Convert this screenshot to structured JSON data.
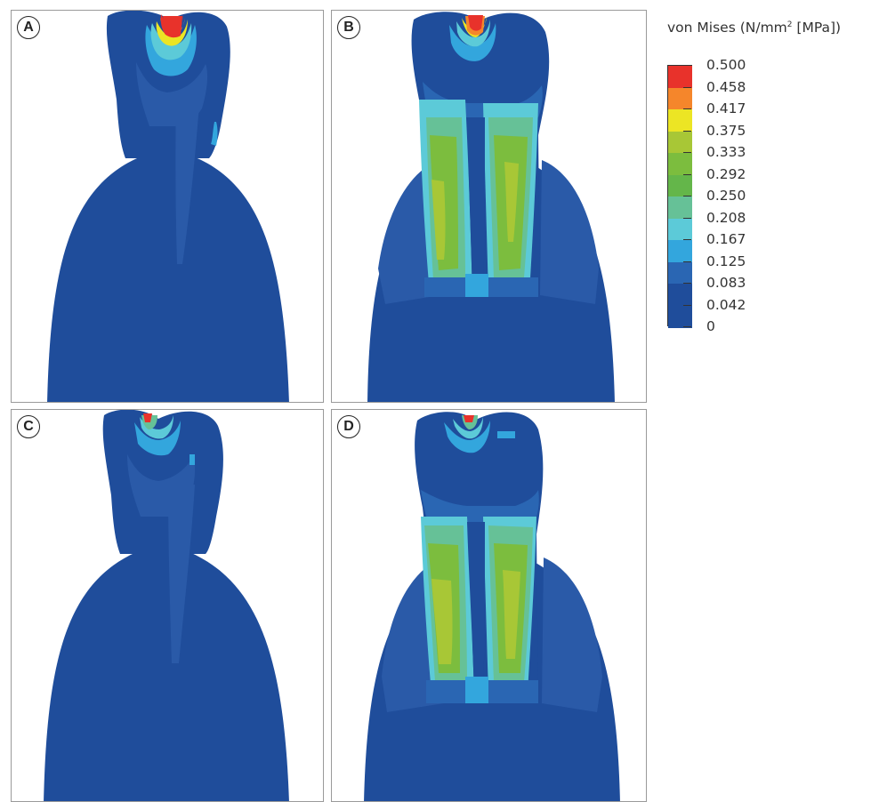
{
  "legend": {
    "title_main": "von Mises (N/mm",
    "title_sup": "2",
    "title_end": " [MPa])",
    "ticks": [
      "0.500",
      "0.458",
      "0.417",
      "0.375",
      "0.333",
      "0.292",
      "0.250",
      "0.208",
      "0.167",
      "0.125",
      "0.083",
      "0.042",
      "0"
    ],
    "colors": [
      "#e8322b",
      "#f5862b",
      "#ece524",
      "#a8c736",
      "#7cbd3e",
      "#64b64a",
      "#66c197",
      "#5ccad8",
      "#33a6dd",
      "#2a66b3",
      "#1f4d9b",
      "#1f4d9b"
    ]
  },
  "panels": [
    {
      "id": "A",
      "label": "A"
    },
    {
      "id": "B",
      "label": "B"
    },
    {
      "id": "C",
      "label": "C"
    },
    {
      "id": "D",
      "label": "D"
    }
  ]
}
